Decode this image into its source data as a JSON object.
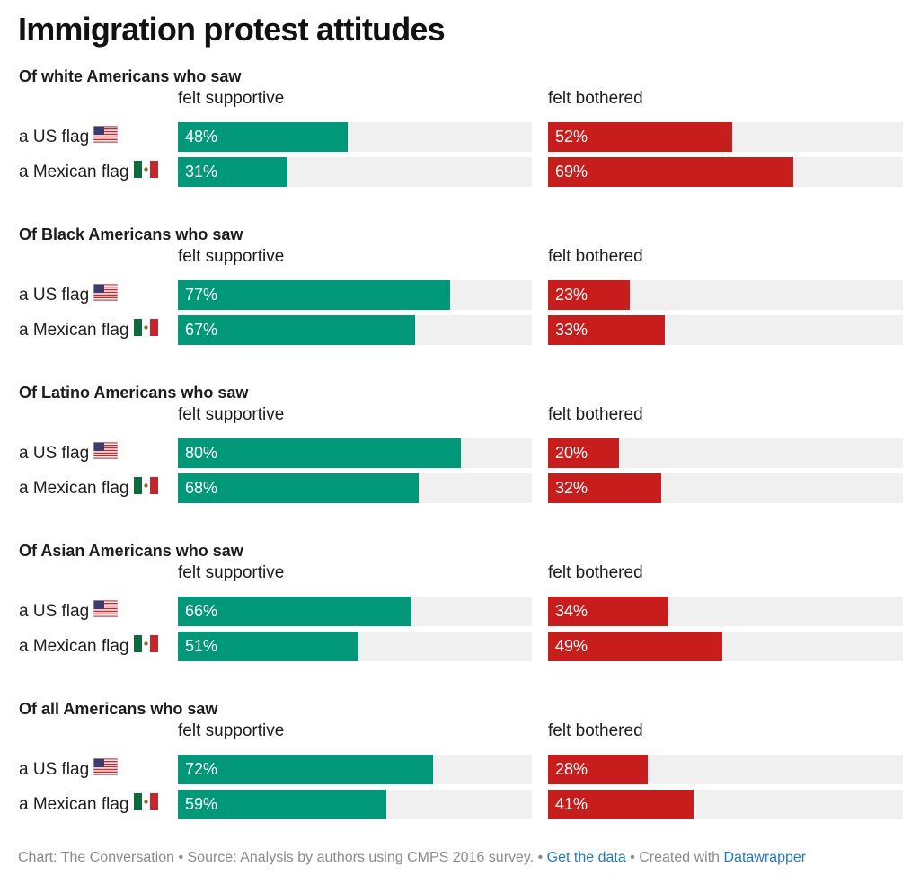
{
  "title": "Immigration protest attitudes",
  "column_headers": [
    "felt supportive",
    "felt bothered"
  ],
  "row_labels": [
    "a US flag",
    "a Mexican flag"
  ],
  "colors": {
    "supportive": "#009879",
    "bothered": "#c71e1d",
    "track": "#f0f0f0",
    "link": "#1f7abf"
  },
  "icons": [
    "us-flag-icon",
    "mexican-flag-icon"
  ],
  "chart_data": {
    "type": "bar",
    "orientation": "horizontal",
    "xlim": [
      0,
      100
    ],
    "unit": "%",
    "series": [
      {
        "name": "felt supportive",
        "color": "#009879"
      },
      {
        "name": "felt bothered",
        "color": "#c71e1d"
      }
    ],
    "groups": [
      {
        "heading": "Of white Americans who saw",
        "rows": [
          {
            "label": "a US flag",
            "supportive": 48,
            "supportive_label": "48%",
            "bothered": 52,
            "bothered_label": "52%"
          },
          {
            "label": "a Mexican flag",
            "supportive": 31,
            "supportive_label": "31%",
            "bothered": 69,
            "bothered_label": "69%"
          }
        ]
      },
      {
        "heading": "Of Black Americans who saw",
        "rows": [
          {
            "label": "a US flag",
            "supportive": 77,
            "supportive_label": "77%",
            "bothered": 23,
            "bothered_label": "23%"
          },
          {
            "label": "a Mexican flag",
            "supportive": 67,
            "supportive_label": "67%",
            "bothered": 33,
            "bothered_label": "33%"
          }
        ]
      },
      {
        "heading": "Of Latino Americans who saw",
        "rows": [
          {
            "label": "a US flag",
            "supportive": 80,
            "supportive_label": "80%",
            "bothered": 20,
            "bothered_label": "20%"
          },
          {
            "label": "a Mexican flag",
            "supportive": 68,
            "supportive_label": "68%",
            "bothered": 32,
            "bothered_label": "32%"
          }
        ]
      },
      {
        "heading": "Of Asian Americans who saw",
        "rows": [
          {
            "label": "a US flag",
            "supportive": 66,
            "supportive_label": "66%",
            "bothered": 34,
            "bothered_label": "34%"
          },
          {
            "label": "a Mexican flag",
            "supportive": 51,
            "supportive_label": "51%",
            "bothered": 49,
            "bothered_label": "49%"
          }
        ]
      },
      {
        "heading": "Of all Americans who saw",
        "rows": [
          {
            "label": "a US flag",
            "supportive": 72,
            "supportive_label": "72%",
            "bothered": 28,
            "bothered_label": "28%"
          },
          {
            "label": "a Mexican flag",
            "supportive": 59,
            "supportive_label": "59%",
            "bothered": 41,
            "bothered_label": "41%"
          }
        ]
      }
    ]
  },
  "footer": {
    "prefix": "Chart: The Conversation • Source: Analysis by authors using CMPS 2016 survey. • ",
    "get_data_link": "Get the data",
    "middle": " • Created with ",
    "datawrapper_link": "Datawrapper"
  }
}
